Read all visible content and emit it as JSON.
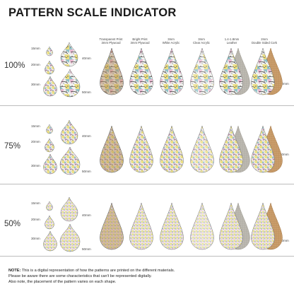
{
  "title": "PATTERN SCALE INDICATOR",
  "materials": [
    {
      "line1": "Transparent Print",
      "line2": "3mm Plywood"
    },
    {
      "line1": "Bright Print",
      "line2": "3mm Plywood"
    },
    {
      "line1": "3mm",
      "line2": "White Acrylic"
    },
    {
      "line1": "3mm",
      "line2": "Clear Acrylic"
    },
    {
      "line1": "1.4-1.8mm",
      "line2": "Leather"
    },
    {
      "line1": "2mm",
      "line2": "Double Sided Cork"
    }
  ],
  "sections": [
    {
      "scale": "100%",
      "sizes": [
        "15mm",
        "20mm",
        "30mm"
      ],
      "dims": [
        "40mm",
        "50mm",
        "60mm"
      ]
    },
    {
      "scale": "75%",
      "sizes": [
        "15mm",
        "20mm",
        "30mm"
      ],
      "dims": [
        "40mm",
        "50mm",
        "60mm"
      ]
    },
    {
      "scale": "50%",
      "sizes": [
        "15mm",
        "20mm",
        "30mm"
      ],
      "dims": [
        "40mm",
        "50mm",
        "60mm"
      ]
    }
  ],
  "note": {
    "label": "NOTE:",
    "line1": "This is a digital representation of how the patterns are printed on the different materials.",
    "line2": "Please be aware there are some characteristics that can't be represented digitally.",
    "line3": "Also note, the placement of the pattern varies on each shape."
  },
  "colors": {
    "plywood": "#b48c5c",
    "leather": "#b9b6ae",
    "cork": "#c79a68",
    "pattern_pink": "#e7b8cf",
    "pattern_yellow": "#ecdf86",
    "pattern_teal": "#8fc3c8",
    "pattern_black": "#1b1b1b"
  }
}
